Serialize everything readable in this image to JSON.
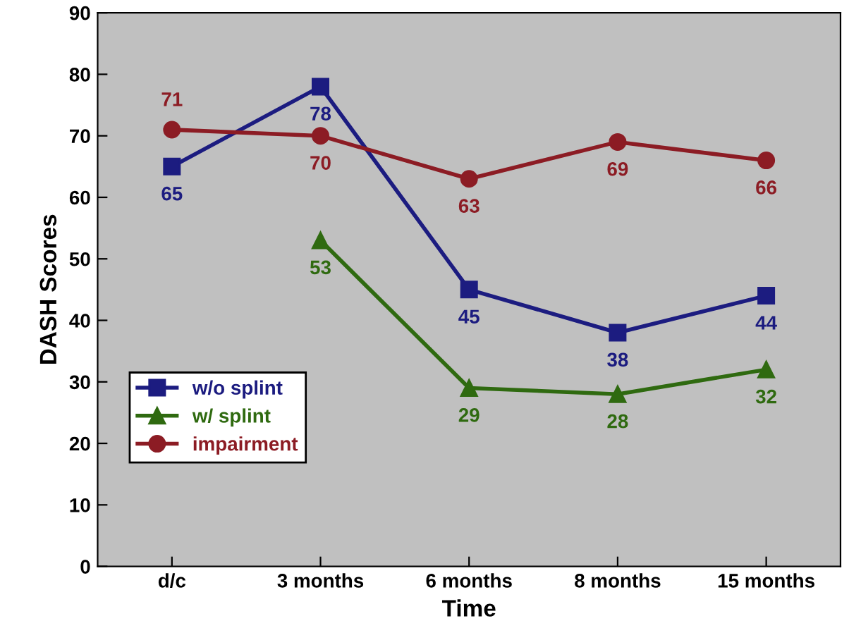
{
  "chart_data": {
    "type": "line",
    "xlabel": "Time",
    "ylabel": "DASH Scores",
    "categories": [
      "d/c",
      "3 months",
      "6 months",
      "8 months",
      "15 months"
    ],
    "series": [
      {
        "name": "w/o splint",
        "color": "#1c1c80",
        "marker": "square",
        "values": [
          65,
          78,
          45,
          38,
          44
        ]
      },
      {
        "name": "w/ splint",
        "color": "#2f6a10",
        "marker": "triangle",
        "values": [
          null,
          53,
          29,
          28,
          32
        ]
      },
      {
        "name": "impairment",
        "color": "#8c1c24",
        "marker": "circle",
        "values": [
          71,
          70,
          63,
          69,
          66
        ]
      }
    ],
    "ylim": [
      0,
      90
    ],
    "yticks": [
      0,
      10,
      20,
      30,
      40,
      50,
      60,
      70,
      80,
      90
    ],
    "data_labels": true,
    "legend": "bottom left",
    "grid": false,
    "line_style": "solid"
  }
}
